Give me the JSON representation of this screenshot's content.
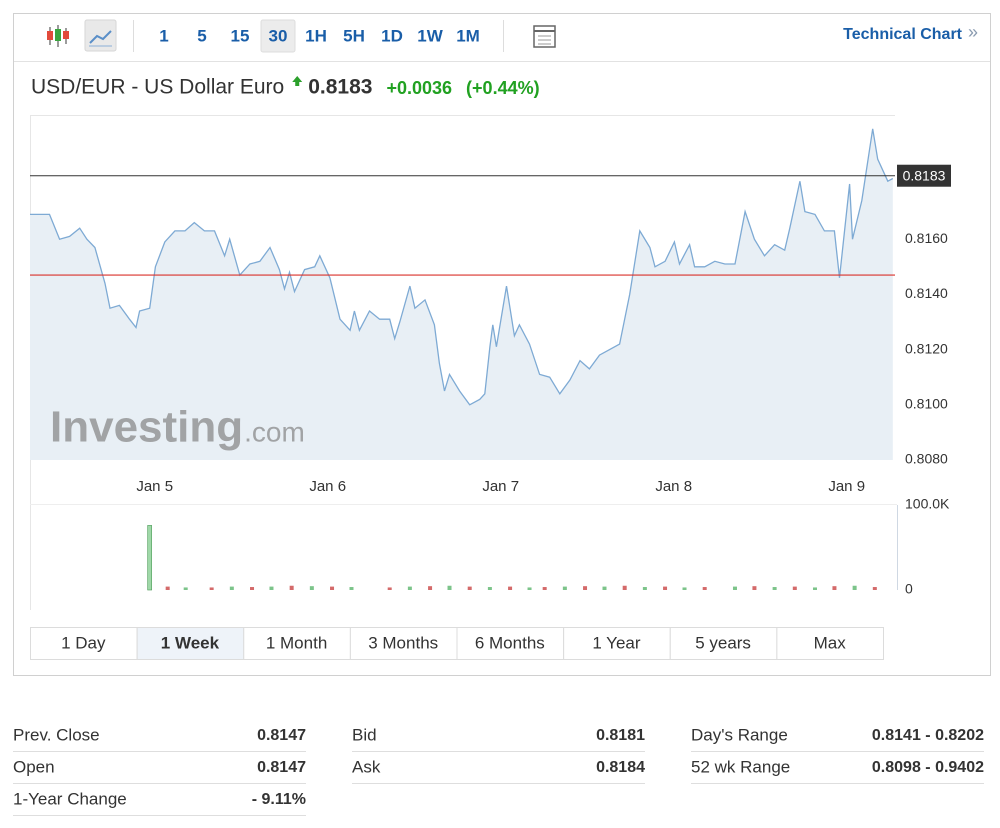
{
  "toolbar": {
    "intervals": [
      "1",
      "5",
      "15",
      "30",
      "1H",
      "5H",
      "1D",
      "1W",
      "1M"
    ],
    "selected_interval": 3,
    "technical_chart": "Technical Chart",
    "technical_chart_arrow": "»"
  },
  "header": {
    "name": "USD/EUR - US Dollar Euro",
    "price": "0.8183",
    "change": "+0.0036",
    "change_percent": "(+0.44%)"
  },
  "watermark": {
    "brand": "Investing",
    "suffix": ".com"
  },
  "chart_data": [
    {
      "type": "line",
      "x": [
        -17.3,
        -16.0,
        -14.6,
        -13.2,
        -11.8,
        -10.4,
        -9.4,
        -8.3,
        -6.9,
        -6.2,
        -4.9,
        -3.5,
        -2.6,
        -2.1,
        -0.7,
        0.1,
        1.4,
        2.8,
        4.2,
        5.5,
        6.9,
        8.3,
        9.7,
        10.4,
        11.8,
        13.2,
        14.6,
        16.0,
        17.3,
        18.0,
        18.7,
        19.4,
        20.8,
        22.2,
        22.9,
        24.3,
        25.7,
        27.1,
        27.7,
        28.4,
        29.8,
        31.2,
        32.6,
        33.3,
        34.0,
        35.4,
        36.1,
        37.5,
        38.8,
        39.5,
        40.2,
        40.9,
        42.3,
        43.7,
        45.1,
        45.8,
        46.5,
        46.9,
        47.4,
        48.8,
        49.9,
        50.6,
        52.0,
        53.4,
        54.8,
        56.2,
        57.6,
        59.0,
        60.3,
        61.7,
        63.1,
        64.5,
        65.9,
        67.3,
        68.7,
        69.4,
        70.8,
        72.1,
        72.8,
        74.2,
        74.9,
        76.3,
        77.7,
        79.1,
        80.5,
        81.9,
        83.2,
        84.6,
        86.0,
        87.4,
        88.1,
        89.5,
        90.2,
        91.6,
        92.9,
        94.3,
        95.0,
        96.4,
        96.8,
        98.1,
        99.6,
        100.3,
        101.7,
        102.4
      ],
      "values": [
        0.8169,
        0.8169,
        0.8169,
        0.816,
        0.8161,
        0.8164,
        0.816,
        0.8157,
        0.8144,
        0.8135,
        0.8136,
        0.8131,
        0.8128,
        0.8134,
        0.8135,
        0.815,
        0.8159,
        0.8163,
        0.8163,
        0.8166,
        0.8163,
        0.8163,
        0.8154,
        0.816,
        0.8147,
        0.8151,
        0.8152,
        0.8157,
        0.8149,
        0.8142,
        0.8148,
        0.8141,
        0.8149,
        0.815,
        0.8154,
        0.8146,
        0.8131,
        0.8127,
        0.8134,
        0.8127,
        0.8134,
        0.8131,
        0.8131,
        0.8124,
        0.813,
        0.8143,
        0.8135,
        0.8138,
        0.8129,
        0.8115,
        0.8105,
        0.8111,
        0.8105,
        0.81,
        0.8102,
        0.8104,
        0.8121,
        0.8129,
        0.8121,
        0.8143,
        0.8125,
        0.8129,
        0.8122,
        0.8111,
        0.811,
        0.8104,
        0.8109,
        0.8116,
        0.8113,
        0.8118,
        0.812,
        0.8122,
        0.814,
        0.8163,
        0.8157,
        0.815,
        0.8152,
        0.8159,
        0.8151,
        0.8158,
        0.815,
        0.815,
        0.8152,
        0.8151,
        0.8151,
        0.817,
        0.816,
        0.8154,
        0.8158,
        0.8156,
        0.8164,
        0.8181,
        0.817,
        0.8169,
        0.8163,
        0.8163,
        0.8146,
        0.818,
        0.816,
        0.8174,
        0.82,
        0.8189,
        0.8181,
        0.8182
      ],
      "color": "#7eaad4",
      "fill": "#e8eff5",
      "xlim": [
        -17.3,
        102.7
      ],
      "xticks": [
        {
          "value": 0,
          "label": "Jan 5"
        },
        {
          "value": 24,
          "label": "Jan 6"
        },
        {
          "value": 48,
          "label": "Jan 7"
        },
        {
          "value": 72,
          "label": "Jan 8"
        },
        {
          "value": 96,
          "label": "Jan 9"
        }
      ],
      "ylim": [
        0.808,
        0.8205
      ],
      "yticks": [
        {
          "value": 0.808,
          "label": "0.8080"
        },
        {
          "value": 0.81,
          "label": "0.8100"
        },
        {
          "value": 0.812,
          "label": "0.8120"
        },
        {
          "value": 0.814,
          "label": "0.8140"
        },
        {
          "value": 0.816,
          "label": "0.8160"
        }
      ],
      "last_price": {
        "value": 0.8183,
        "label": "0.8183"
      },
      "last_price_color": "#333333",
      "reference_line": 0.8147,
      "reference_color": "#d9312b"
    },
    {
      "type": "bar",
      "x": [
        -0.7,
        1.8,
        4.3,
        7.9,
        10.7,
        13.5,
        16.2,
        19.0,
        21.8,
        24.6,
        27.3,
        32.6,
        35.4,
        38.2,
        40.9,
        43.7,
        46.5,
        49.3,
        52.0,
        54.1,
        56.9,
        59.7,
        62.4,
        65.2,
        68.0,
        70.8,
        73.5,
        76.3,
        80.5,
        83.2,
        86.0,
        88.8,
        91.6,
        94.3,
        97.1,
        99.9
      ],
      "values": [
        76000,
        4000,
        3000,
        3000,
        4000,
        3500,
        4000,
        5000,
        4500,
        4000,
        3500,
        3000,
        4000,
        4500,
        5000,
        4000,
        3500,
        4000,
        3000,
        3500,
        4000,
        4500,
        4000,
        5000,
        3500,
        4000,
        3000,
        3500,
        4000,
        4500,
        3500,
        4000,
        3000,
        4500,
        5000,
        3500
      ],
      "colors": [
        "#9fd8a8",
        "#d46a6a",
        "#7cc48a",
        "#d46a6a",
        "#7cc48a",
        "#d46a6a",
        "#7cc48a",
        "#d46a6a",
        "#7cc48a",
        "#d46a6a",
        "#7cc48a",
        "#d46a6a",
        "#7cc48a",
        "#d46a6a",
        "#7cc48a",
        "#d46a6a",
        "#7cc48a",
        "#d46a6a",
        "#7cc48a",
        "#d46a6a",
        "#7cc48a",
        "#d46a6a",
        "#7cc48a",
        "#d46a6a",
        "#7cc48a",
        "#d46a6a",
        "#7cc48a",
        "#d46a6a",
        "#7cc48a",
        "#d46a6a",
        "#7cc48a",
        "#d46a6a",
        "#7cc48a",
        "#d46a6a",
        "#7cc48a",
        "#d46a6a"
      ],
      "xlim": [
        -17.3,
        102.7
      ],
      "ylim": [
        0,
        100000
      ],
      "yticks": [
        0,
        {
          "value": 100000,
          "label": "100.0K"
        }
      ]
    }
  ],
  "ranges": {
    "options": [
      "1 Day",
      "1 Week",
      "1 Month",
      "3 Months",
      "6 Months",
      "1 Year",
      "5 years",
      "Max"
    ],
    "selected": 1
  },
  "stats": [
    [
      [
        "Prev. Close",
        "0.8147"
      ],
      [
        "Open",
        "0.8147"
      ],
      [
        "1-Year Change",
        "- 9.11%"
      ]
    ],
    [
      [
        "Bid",
        "0.8181"
      ],
      [
        "Ask",
        "0.8184"
      ]
    ],
    [
      [
        "Day's Range",
        "0.8141 - 0.8202"
      ],
      [
        "52 wk Range",
        "0.8098 - 0.9402"
      ]
    ]
  ]
}
